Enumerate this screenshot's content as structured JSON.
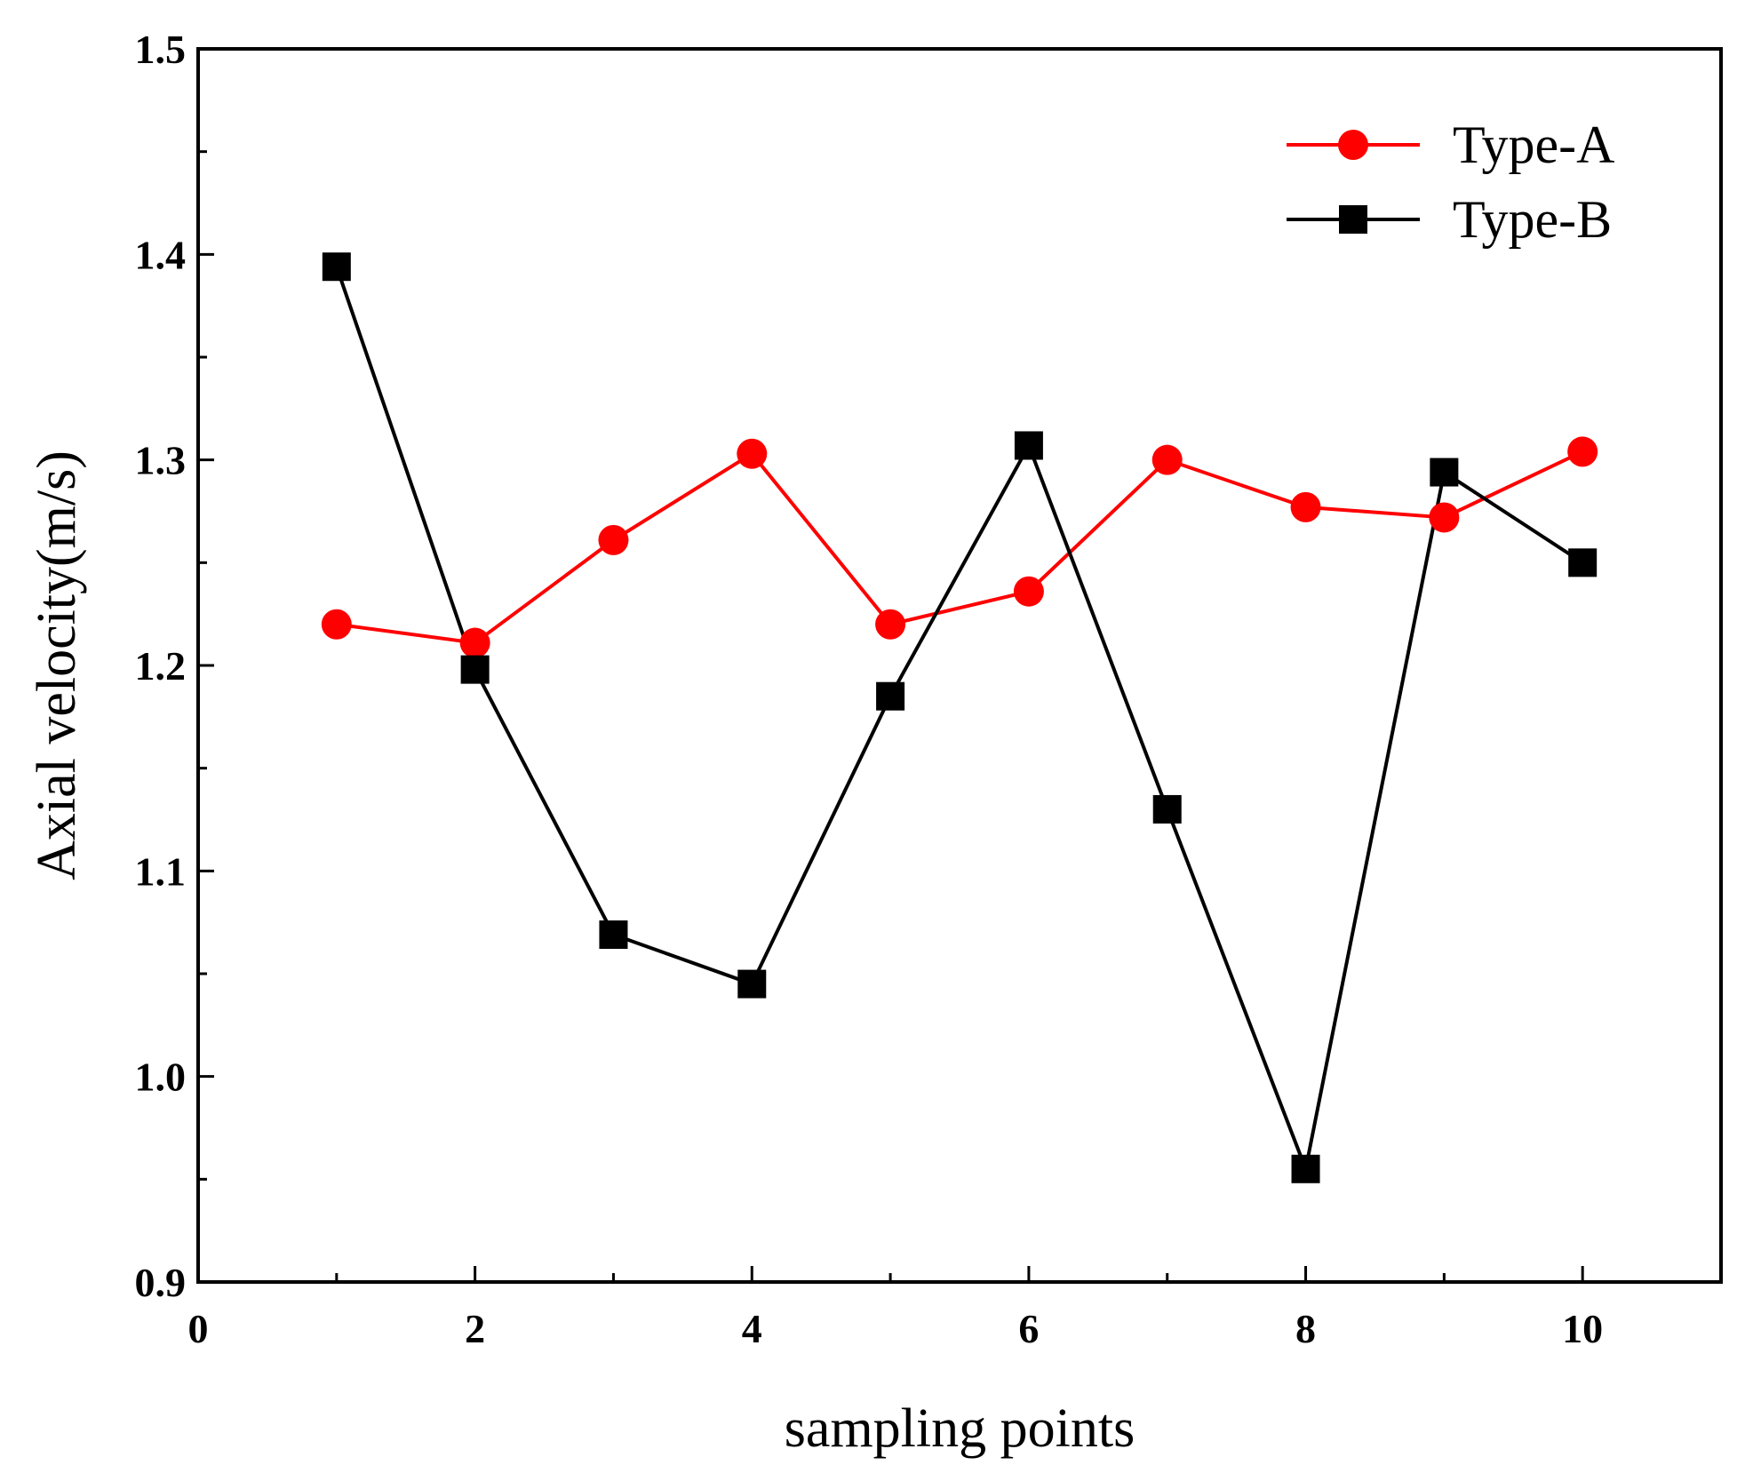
{
  "chart_data": {
    "type": "line",
    "title": "",
    "xlabel": "sampling points",
    "ylabel": "Axial velocity(m/s)",
    "xlim": [
      0,
      11
    ],
    "ylim": [
      0.9,
      1.5
    ],
    "xticks": [
      0,
      2,
      4,
      6,
      8,
      10
    ],
    "xtick_labels": [
      "0",
      "2",
      "4",
      "6",
      "8",
      "10"
    ],
    "yticks": [
      0.9,
      1.0,
      1.1,
      1.2,
      1.3,
      1.4,
      1.5
    ],
    "ytick_labels": [
      "0.9",
      "1.0",
      "1.1",
      "1.2",
      "1.3",
      "1.4",
      "1.5"
    ],
    "grid": false,
    "legend_position": "top-right",
    "x": [
      1,
      2,
      3,
      4,
      5,
      6,
      7,
      8,
      9,
      10
    ],
    "series": [
      {
        "name": "Type-A",
        "marker": "circle",
        "color": "#ff0000",
        "values": [
          1.22,
          1.211,
          1.261,
          1.303,
          1.22,
          1.236,
          1.3,
          1.277,
          1.272,
          1.304
        ]
      },
      {
        "name": "Type-B",
        "marker": "square",
        "color": "#000000",
        "values": [
          1.394,
          1.198,
          1.069,
          1.045,
          1.185,
          1.307,
          1.13,
          0.955,
          1.294,
          1.25
        ]
      }
    ]
  }
}
